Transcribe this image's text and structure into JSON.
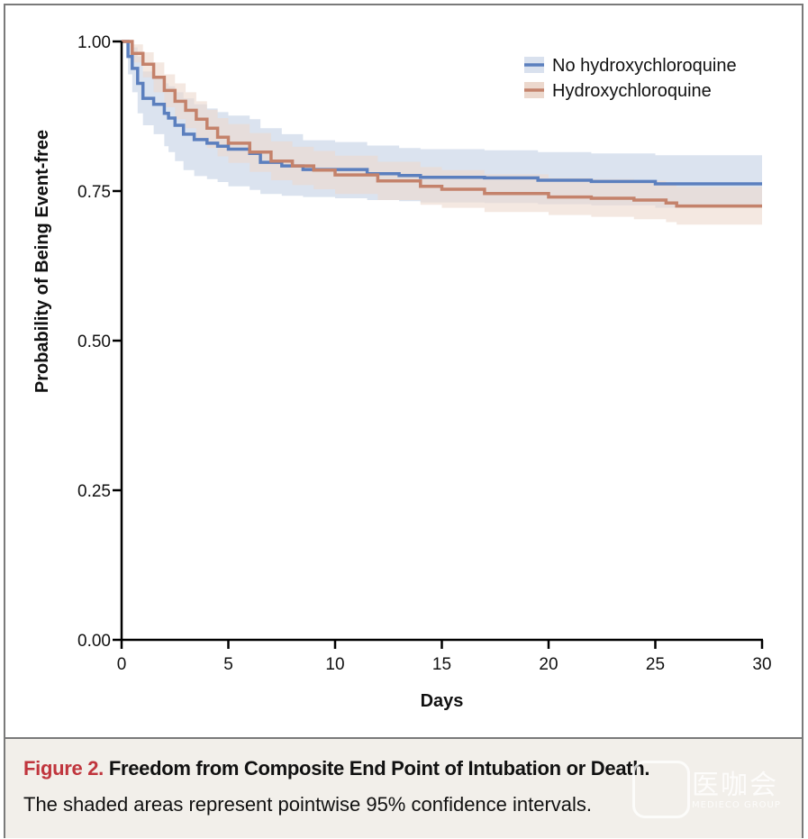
{
  "chart_data": {
    "type": "line",
    "subtype": "kaplan-meier-step",
    "xlabel": "Days",
    "ylabel": "Probability of Being Event-free",
    "xlim": [
      0,
      30
    ],
    "ylim": [
      0,
      1
    ],
    "x_ticks": [
      "0",
      "5",
      "10",
      "15",
      "20",
      "25",
      "30"
    ],
    "x_tick_values": [
      0,
      5,
      10,
      15,
      20,
      25,
      30
    ],
    "y_ticks": [
      "0.00",
      "0.25",
      "0.50",
      "0.75",
      "1.00"
    ],
    "y_tick_values": [
      0,
      0.25,
      0.5,
      0.75,
      1.0
    ],
    "grid": false,
    "legend_position": "top-right",
    "series": [
      {
        "name": "No hydroxychloroquine",
        "color": "#5b7fbe",
        "band_color": "#d9e1ee",
        "x": [
          0,
          0.3,
          0.5,
          0.75,
          1.0,
          1.5,
          2.0,
          2.2,
          2.5,
          2.9,
          3.4,
          4.0,
          4.5,
          5.0,
          6.0,
          6.5,
          7.5,
          8.5,
          10.0,
          11.5,
          13.0,
          14.0,
          17.0,
          19.5,
          22.0,
          25.0,
          30.0
        ],
        "y": [
          1.0,
          0.975,
          0.955,
          0.93,
          0.905,
          0.895,
          0.88,
          0.872,
          0.86,
          0.845,
          0.836,
          0.83,
          0.825,
          0.82,
          0.813,
          0.798,
          0.792,
          0.786,
          0.786,
          0.779,
          0.776,
          0.773,
          0.772,
          0.768,
          0.766,
          0.762,
          0.762
        ],
        "lower": [
          1.0,
          0.945,
          0.915,
          0.88,
          0.86,
          0.845,
          0.825,
          0.815,
          0.8,
          0.785,
          0.775,
          0.77,
          0.765,
          0.758,
          0.752,
          0.745,
          0.742,
          0.74,
          0.738,
          0.735,
          0.733,
          0.731,
          0.73,
          0.728,
          0.726,
          0.722,
          0.722
        ],
        "upper": [
          1.0,
          1.0,
          0.99,
          0.975,
          0.95,
          0.94,
          0.93,
          0.925,
          0.915,
          0.905,
          0.895,
          0.888,
          0.882,
          0.876,
          0.87,
          0.855,
          0.845,
          0.835,
          0.832,
          0.826,
          0.822,
          0.82,
          0.818,
          0.815,
          0.813,
          0.81,
          0.81
        ]
      },
      {
        "name": "Hydroxychloroquine",
        "color": "#c4826b",
        "band_color": "#ecd8cd",
        "x": [
          0,
          0.5,
          1.0,
          1.5,
          2.0,
          2.5,
          3.0,
          3.5,
          4.0,
          4.5,
          5.0,
          6.0,
          7.0,
          8.0,
          9.0,
          10.0,
          12.0,
          14.0,
          15.0,
          17.0,
          20.0,
          22.0,
          24.0,
          25.5,
          26.0,
          28.0,
          30.0
        ],
        "y": [
          1.0,
          0.98,
          0.962,
          0.94,
          0.918,
          0.9,
          0.885,
          0.87,
          0.855,
          0.84,
          0.83,
          0.815,
          0.8,
          0.792,
          0.785,
          0.777,
          0.767,
          0.758,
          0.753,
          0.746,
          0.74,
          0.738,
          0.735,
          0.73,
          0.725,
          0.725,
          0.725
        ],
        "lower": [
          1.0,
          0.965,
          0.94,
          0.915,
          0.89,
          0.87,
          0.855,
          0.838,
          0.822,
          0.808,
          0.797,
          0.782,
          0.768,
          0.76,
          0.753,
          0.745,
          0.735,
          0.727,
          0.722,
          0.715,
          0.71,
          0.707,
          0.703,
          0.698,
          0.694,
          0.694,
          0.694
        ],
        "upper": [
          1.0,
          0.995,
          0.982,
          0.965,
          0.945,
          0.93,
          0.915,
          0.9,
          0.886,
          0.872,
          0.862,
          0.847,
          0.833,
          0.824,
          0.817,
          0.809,
          0.799,
          0.79,
          0.785,
          0.778,
          0.772,
          0.77,
          0.767,
          0.762,
          0.757,
          0.757,
          0.757
        ]
      }
    ]
  },
  "caption": {
    "figure_label": "Figure 2.",
    "title": "Freedom from Composite End Point of Intubation or Death.",
    "subtitle": "The shaded areas represent pointwise 95% confidence intervals."
  },
  "watermark": {
    "text": "医咖会",
    "subtext": "MEDIECO GROUP"
  }
}
